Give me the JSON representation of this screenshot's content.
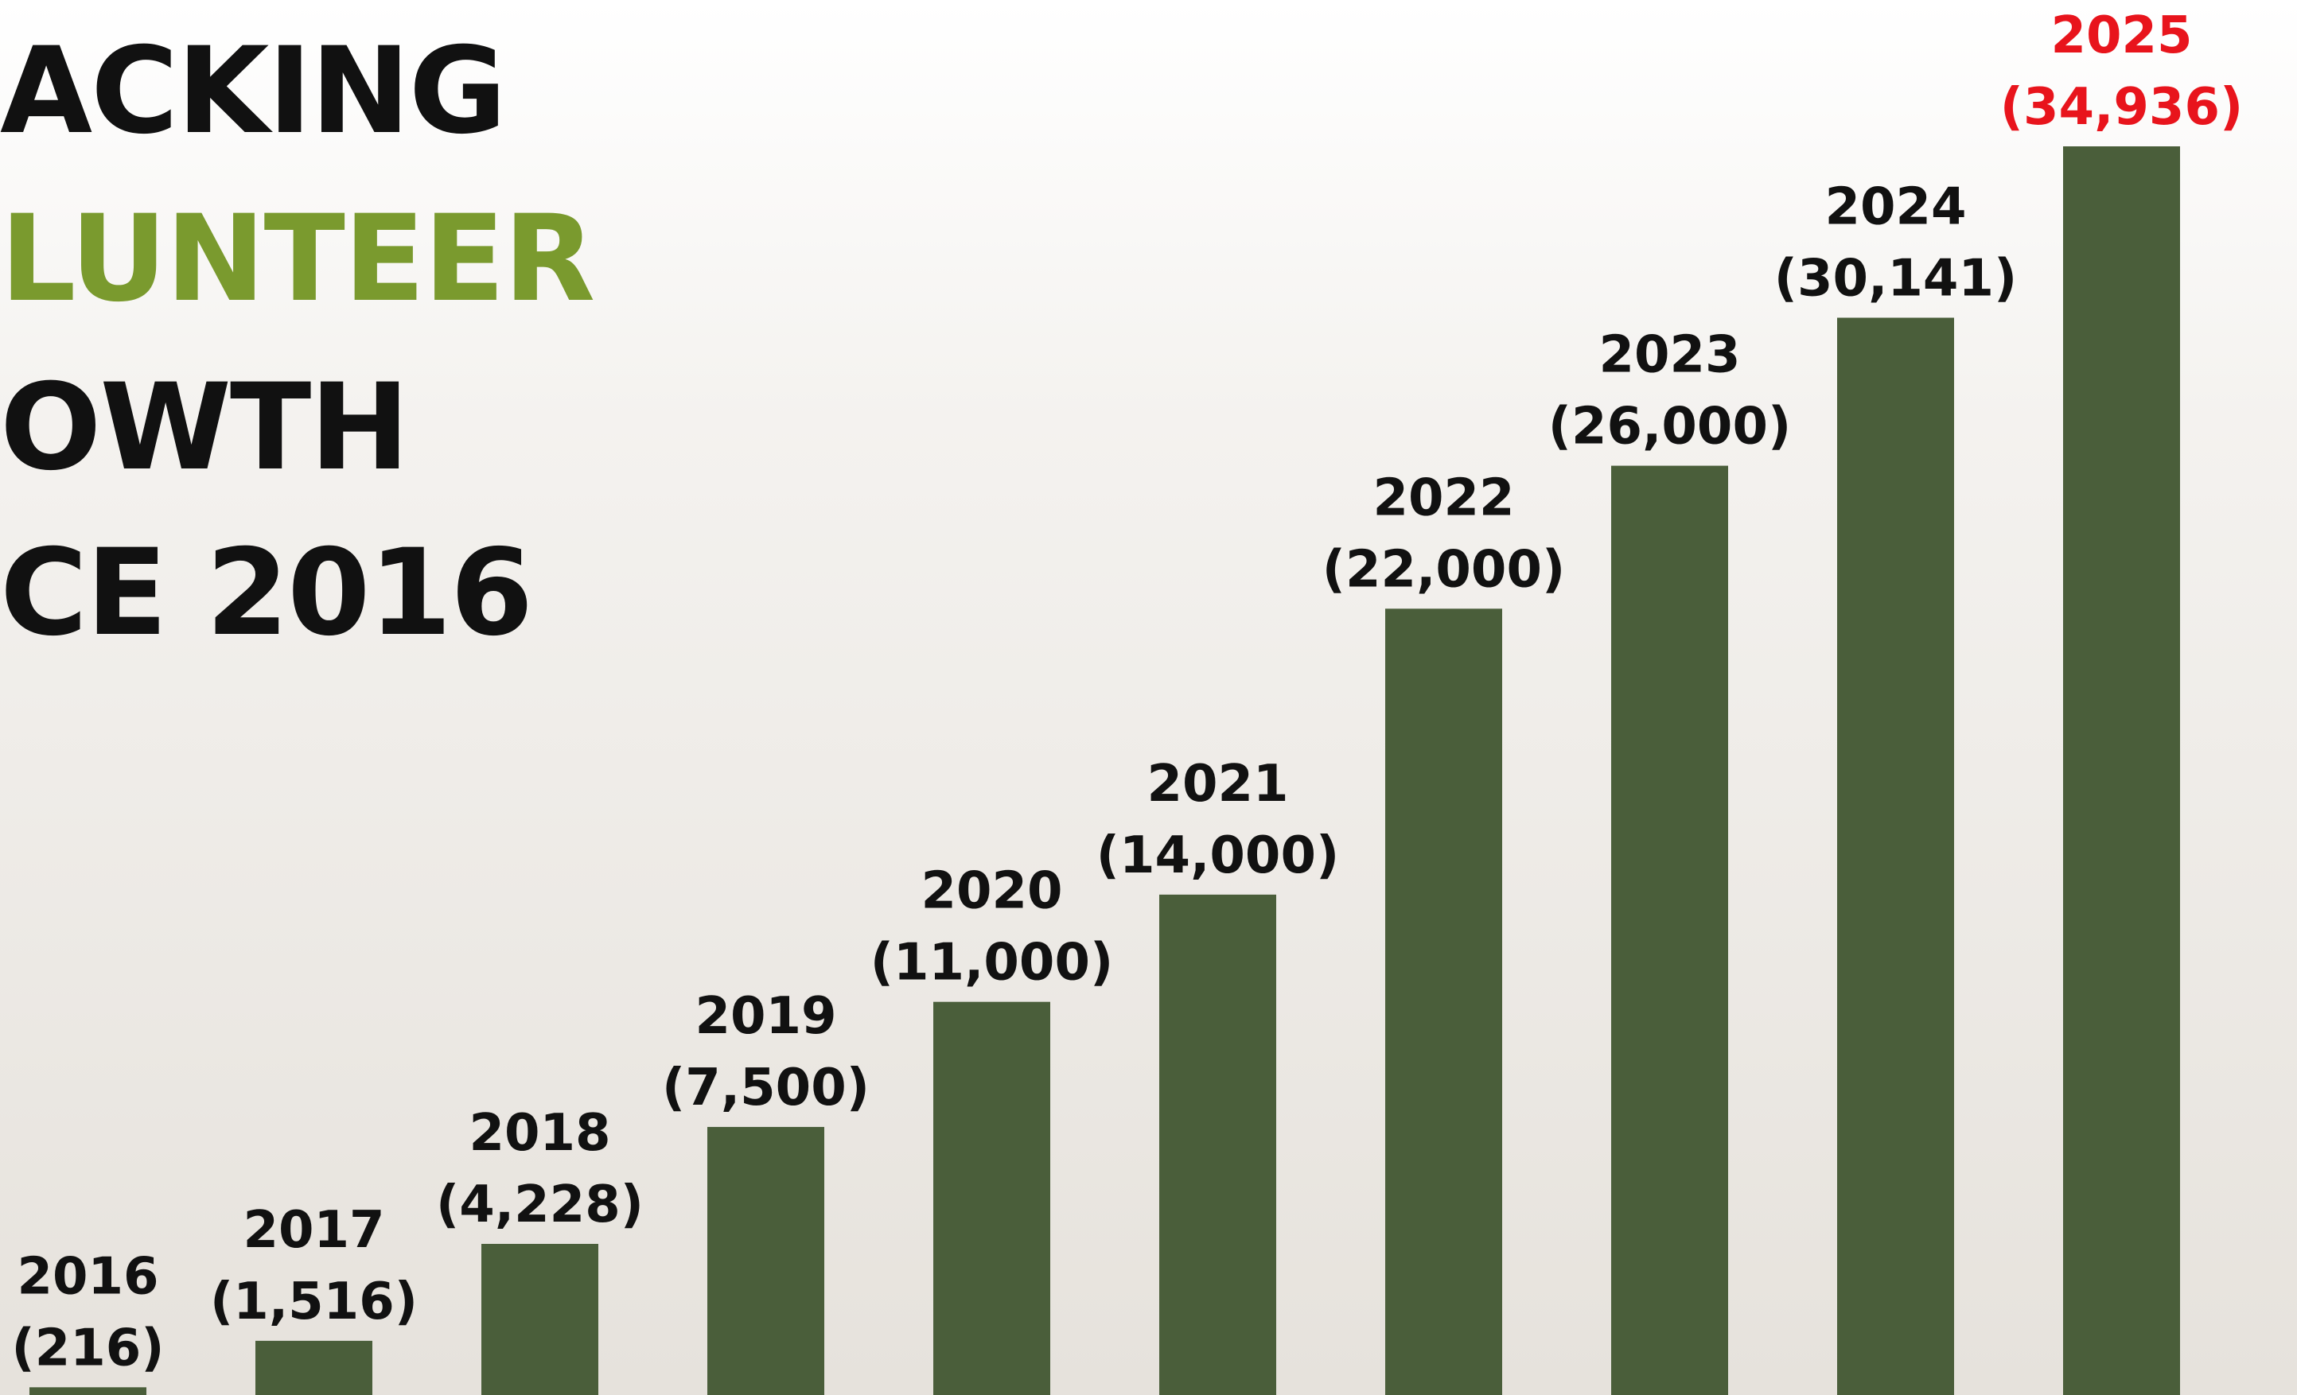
{
  "chart_data": {
    "type": "bar",
    "title_lines": [
      "ACKING",
      "LUNTEER",
      "OWTH",
      "CE 2016"
    ],
    "title_colors": [
      "#111111",
      "#7a9a2e",
      "#111111",
      "#111111"
    ],
    "categories": [
      "2016",
      "2017",
      "2018",
      "2019",
      "2020",
      "2021",
      "2022",
      "2023",
      "2024",
      "2025"
    ],
    "values": [
      216,
      1516,
      4228,
      7500,
      11000,
      14000,
      22000,
      26000,
      30141,
      34936
    ],
    "value_labels": [
      "(216)",
      "(1,516)",
      "(4,228)",
      "(7,500)",
      "(11,000)",
      "(14,000)",
      "(22,000)",
      "(26,000)",
      "(30,141)",
      "(34,936)"
    ],
    "color": "#4a5e3a",
    "label_color": "#111111",
    "highlight_color": "#e8141c",
    "highlight_index": 9
  }
}
